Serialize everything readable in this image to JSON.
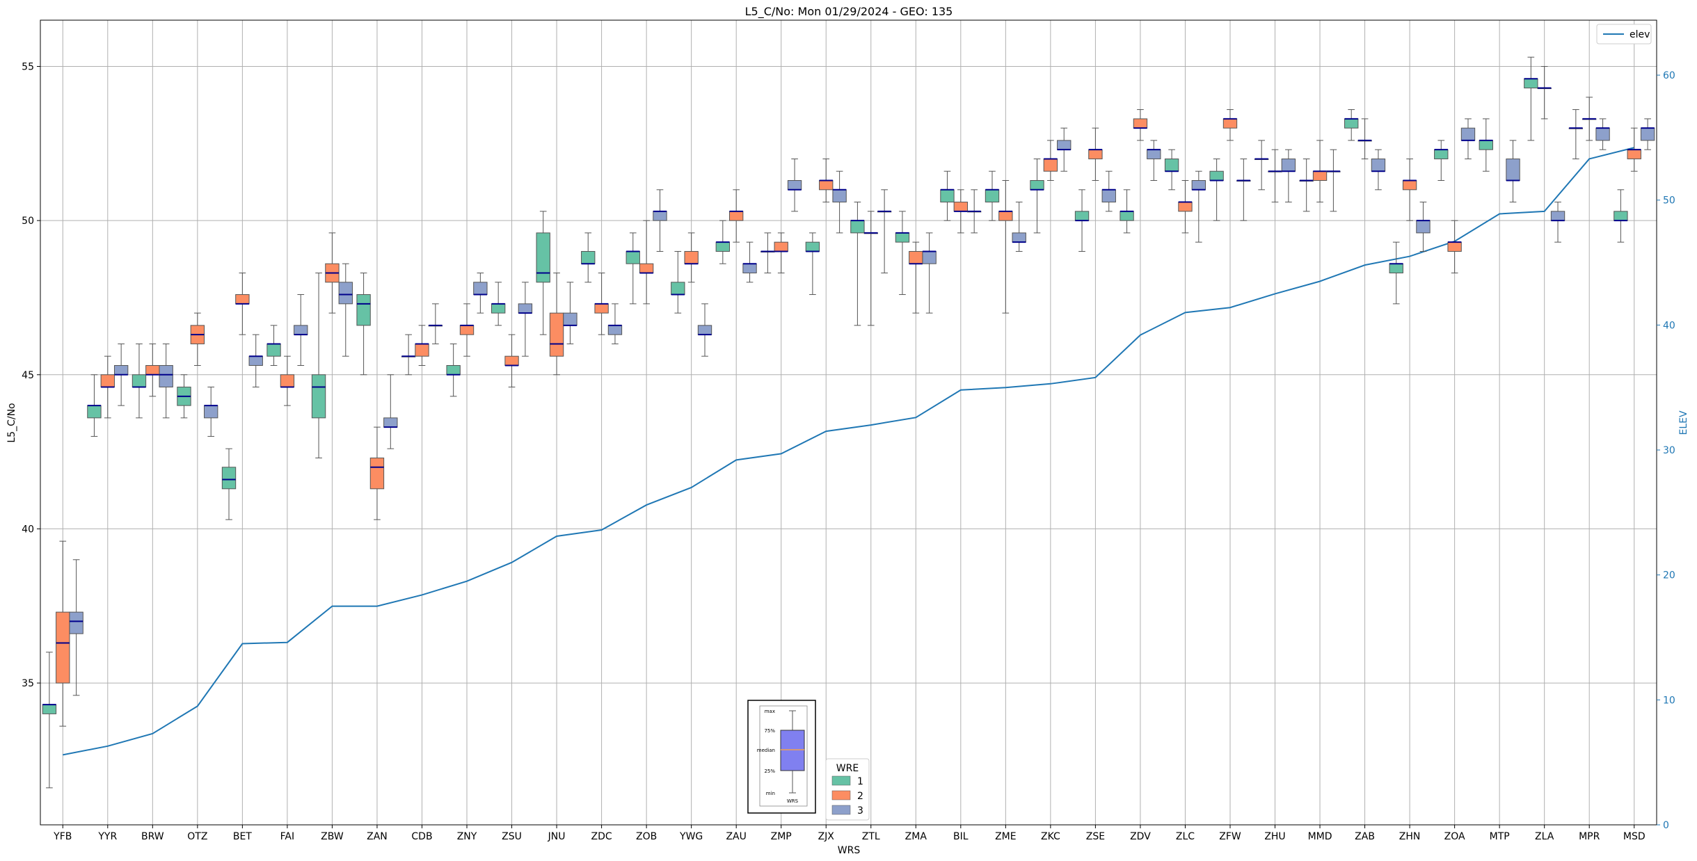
{
  "chart_data": {
    "type": "box",
    "title": "L5_C/No: Mon 01/29/2024 - GEO: 135",
    "xlabel": "WRS",
    "ylabel": "L5_C/No",
    "ylabel_right": "ELEV",
    "ylim": [
      30.4,
      56.5
    ],
    "y2lim": [
      0,
      64.4
    ],
    "yticks": [
      35,
      40,
      45,
      50,
      55
    ],
    "y2ticks": [
      0,
      10,
      20,
      30,
      40,
      50,
      60
    ],
    "grid": true,
    "categories": [
      "YFB",
      "YYR",
      "BRW",
      "OTZ",
      "BET",
      "FAI",
      "ZBW",
      "ZAN",
      "CDB",
      "ZNY",
      "ZSU",
      "JNU",
      "ZDC",
      "ZOB",
      "YWG",
      "ZAU",
      "ZMP",
      "ZJX",
      "ZTL",
      "ZMA",
      "BIL",
      "ZME",
      "ZKC",
      "ZSE",
      "ZDV",
      "ZLC",
      "ZFW",
      "ZHU",
      "MMD",
      "ZAB",
      "ZHN",
      "ZOA",
      "MTP",
      "ZLA",
      "MPR",
      "MSD"
    ],
    "legend_wre": {
      "title": "WRE",
      "entries": [
        {
          "label": "1",
          "color": "#66c2a5"
        },
        {
          "label": "2",
          "color": "#fc8d62"
        },
        {
          "label": "3",
          "color": "#8da0cb"
        }
      ],
      "placement": "bottom-center"
    },
    "legend_line": {
      "label": "elev",
      "color": "#1f77b4",
      "placement": "top-right"
    },
    "inset_labels": [
      "max",
      "75%",
      "median",
      "25%",
      "min",
      "WRS"
    ],
    "elev": [
      5.6,
      6.3,
      7.3,
      9.5,
      14.5,
      14.6,
      17.5,
      17.5,
      18.4,
      19.5,
      21.0,
      23.1,
      23.6,
      25.6,
      27.0,
      29.2,
      29.7,
      31.5,
      32.0,
      32.6,
      34.8,
      35.0,
      35.3,
      35.8,
      39.2,
      41.0,
      41.4,
      42.5,
      43.5,
      44.8,
      45.5,
      46.7,
      48.9,
      49.1,
      53.3,
      54.2
    ],
    "boxes": [
      {
        "cat": "YFB",
        "wre": 1,
        "min": 31.6,
        "q1": 34.0,
        "med": 34.3,
        "q3": 34.3,
        "max": 36.0
      },
      {
        "cat": "YFB",
        "wre": 2,
        "min": 33.6,
        "q1": 35.0,
        "med": 36.3,
        "q3": 37.3,
        "max": 39.6
      },
      {
        "cat": "YFB",
        "wre": 3,
        "min": 34.6,
        "q1": 36.6,
        "med": 37.0,
        "q3": 37.3,
        "max": 39.0
      },
      {
        "cat": "YYR",
        "wre": 1,
        "min": 43.0,
        "q1": 43.6,
        "med": 44.0,
        "q3": 44.0,
        "max": 45.0
      },
      {
        "cat": "YYR",
        "wre": 2,
        "min": 43.6,
        "q1": 44.6,
        "med": 44.6,
        "q3": 45.0,
        "max": 45.6
      },
      {
        "cat": "YYR",
        "wre": 3,
        "min": 44.0,
        "q1": 45.0,
        "med": 45.0,
        "q3": 45.3,
        "max": 46.0
      },
      {
        "cat": "BRW",
        "wre": 1,
        "min": 43.6,
        "q1": 44.6,
        "med": 44.6,
        "q3": 45.0,
        "max": 46.0
      },
      {
        "cat": "BRW",
        "wre": 2,
        "min": 44.3,
        "q1": 45.0,
        "med": 45.0,
        "q3": 45.3,
        "max": 46.0
      },
      {
        "cat": "BRW",
        "wre": 3,
        "min": 43.6,
        "q1": 44.6,
        "med": 45.0,
        "q3": 45.3,
        "max": 46.0
      },
      {
        "cat": "OTZ",
        "wre": 1,
        "min": 43.6,
        "q1": 44.0,
        "med": 44.3,
        "q3": 44.6,
        "max": 45.0
      },
      {
        "cat": "OTZ",
        "wre": 2,
        "min": 45.3,
        "q1": 46.0,
        "med": 46.3,
        "q3": 46.6,
        "max": 47.0
      },
      {
        "cat": "OTZ",
        "wre": 3,
        "min": 43.0,
        "q1": 43.6,
        "med": 44.0,
        "q3": 44.0,
        "max": 44.6
      },
      {
        "cat": "BET",
        "wre": 1,
        "min": 40.3,
        "q1": 41.3,
        "med": 41.6,
        "q3": 42.0,
        "max": 42.6
      },
      {
        "cat": "BET",
        "wre": 2,
        "min": 46.3,
        "q1": 47.3,
        "med": 47.3,
        "q3": 47.6,
        "max": 48.3
      },
      {
        "cat": "BET",
        "wre": 3,
        "min": 44.6,
        "q1": 45.3,
        "med": 45.6,
        "q3": 45.6,
        "max": 46.3
      },
      {
        "cat": "FAI",
        "wre": 1,
        "min": 45.3,
        "q1": 45.6,
        "med": 46.0,
        "q3": 46.0,
        "max": 46.6
      },
      {
        "cat": "FAI",
        "wre": 2,
        "min": 44.0,
        "q1": 44.6,
        "med": 44.6,
        "q3": 45.0,
        "max": 45.6
      },
      {
        "cat": "FAI",
        "wre": 3,
        "min": 45.3,
        "q1": 46.3,
        "med": 46.3,
        "q3": 46.6,
        "max": 47.6
      },
      {
        "cat": "ZBW",
        "wre": 1,
        "min": 42.3,
        "q1": 43.6,
        "med": 44.6,
        "q3": 45.0,
        "max": 48.3
      },
      {
        "cat": "ZBW",
        "wre": 2,
        "min": 47.0,
        "q1": 48.0,
        "med": 48.3,
        "q3": 48.6,
        "max": 49.6
      },
      {
        "cat": "ZBW",
        "wre": 3,
        "min": 45.6,
        "q1": 47.3,
        "med": 47.6,
        "q3": 48.0,
        "max": 48.6
      },
      {
        "cat": "ZAN",
        "wre": 1,
        "min": 45.0,
        "q1": 46.6,
        "med": 47.3,
        "q3": 47.6,
        "max": 48.3
      },
      {
        "cat": "ZAN",
        "wre": 2,
        "min": 40.3,
        "q1": 41.3,
        "med": 42.0,
        "q3": 42.3,
        "max": 43.3
      },
      {
        "cat": "ZAN",
        "wre": 3,
        "min": 42.6,
        "q1": 43.3,
        "med": 43.3,
        "q3": 43.6,
        "max": 45.0
      },
      {
        "cat": "CDB",
        "wre": 1,
        "min": 45.0,
        "q1": 45.6,
        "med": 45.6,
        "q3": 45.6,
        "max": 46.3
      },
      {
        "cat": "CDB",
        "wre": 2,
        "min": 45.3,
        "q1": 45.6,
        "med": 46.0,
        "q3": 46.0,
        "max": 46.6
      },
      {
        "cat": "CDB",
        "wre": 3,
        "min": 46.0,
        "q1": 46.6,
        "med": 46.6,
        "q3": 46.6,
        "max": 47.3
      },
      {
        "cat": "ZNY",
        "wre": 1,
        "min": 44.3,
        "q1": 45.0,
        "med": 45.0,
        "q3": 45.3,
        "max": 46.0
      },
      {
        "cat": "ZNY",
        "wre": 2,
        "min": 45.6,
        "q1": 46.3,
        "med": 46.6,
        "q3": 46.6,
        "max": 47.3
      },
      {
        "cat": "ZNY",
        "wre": 3,
        "min": 47.0,
        "q1": 47.6,
        "med": 47.6,
        "q3": 48.0,
        "max": 48.3
      },
      {
        "cat": "ZSU",
        "wre": 1,
        "min": 46.6,
        "q1": 47.0,
        "med": 47.3,
        "q3": 47.3,
        "max": 48.0
      },
      {
        "cat": "ZSU",
        "wre": 2,
        "min": 44.6,
        "q1": 45.3,
        "med": 45.3,
        "q3": 45.6,
        "max": 46.3
      },
      {
        "cat": "ZSU",
        "wre": 3,
        "min": 45.6,
        "q1": 47.0,
        "med": 47.0,
        "q3": 47.3,
        "max": 48.0
      },
      {
        "cat": "JNU",
        "wre": 1,
        "min": 46.3,
        "q1": 48.0,
        "med": 48.3,
        "q3": 49.6,
        "max": 50.3
      },
      {
        "cat": "JNU",
        "wre": 2,
        "min": 45.0,
        "q1": 45.6,
        "med": 46.0,
        "q3": 47.0,
        "max": 48.3
      },
      {
        "cat": "JNU",
        "wre": 3,
        "min": 46.0,
        "q1": 46.6,
        "med": 46.6,
        "q3": 47.0,
        "max": 48.0
      },
      {
        "cat": "ZDC",
        "wre": 1,
        "min": 48.0,
        "q1": 48.6,
        "med": 48.6,
        "q3": 49.0,
        "max": 49.6
      },
      {
        "cat": "ZDC",
        "wre": 2,
        "min": 46.3,
        "q1": 47.0,
        "med": 47.3,
        "q3": 47.3,
        "max": 48.3
      },
      {
        "cat": "ZDC",
        "wre": 3,
        "min": 46.0,
        "q1": 46.3,
        "med": 46.6,
        "q3": 46.6,
        "max": 47.3
      },
      {
        "cat": "ZOB",
        "wre": 1,
        "min": 47.3,
        "q1": 48.6,
        "med": 49.0,
        "q3": 49.0,
        "max": 49.6
      },
      {
        "cat": "ZOB",
        "wre": 2,
        "min": 47.3,
        "q1": 48.3,
        "med": 48.3,
        "q3": 48.6,
        "max": 50.0
      },
      {
        "cat": "ZOB",
        "wre": 3,
        "min": 49.0,
        "q1": 50.0,
        "med": 50.3,
        "q3": 50.3,
        "max": 51.0
      },
      {
        "cat": "YWG",
        "wre": 1,
        "min": 47.0,
        "q1": 47.6,
        "med": 47.6,
        "q3": 48.0,
        "max": 49.0
      },
      {
        "cat": "YWG",
        "wre": 2,
        "min": 48.0,
        "q1": 48.6,
        "med": 48.6,
        "q3": 49.0,
        "max": 49.6
      },
      {
        "cat": "YWG",
        "wre": 3,
        "min": 45.6,
        "q1": 46.3,
        "med": 46.3,
        "q3": 46.6,
        "max": 47.3
      },
      {
        "cat": "ZAU",
        "wre": 1,
        "min": 48.6,
        "q1": 49.0,
        "med": 49.3,
        "q3": 49.3,
        "max": 50.0
      },
      {
        "cat": "ZAU",
        "wre": 2,
        "min": 49.3,
        "q1": 50.0,
        "med": 50.3,
        "q3": 50.3,
        "max": 51.0
      },
      {
        "cat": "ZAU",
        "wre": 3,
        "min": 48.0,
        "q1": 48.3,
        "med": 48.6,
        "q3": 48.6,
        "max": 49.3
      },
      {
        "cat": "ZMP",
        "wre": 1,
        "min": 48.3,
        "q1": 49.0,
        "med": 49.0,
        "q3": 49.0,
        "max": 49.6
      },
      {
        "cat": "ZMP",
        "wre": 2,
        "min": 48.3,
        "q1": 49.0,
        "med": 49.0,
        "q3": 49.3,
        "max": 49.6
      },
      {
        "cat": "ZMP",
        "wre": 3,
        "min": 50.3,
        "q1": 51.0,
        "med": 51.0,
        "q3": 51.3,
        "max": 52.0
      },
      {
        "cat": "ZJX",
        "wre": 1,
        "min": 47.6,
        "q1": 49.0,
        "med": 49.0,
        "q3": 49.3,
        "max": 49.6
      },
      {
        "cat": "ZJX",
        "wre": 2,
        "min": 50.6,
        "q1": 51.0,
        "med": 51.3,
        "q3": 51.3,
        "max": 52.0
      },
      {
        "cat": "ZJX",
        "wre": 3,
        "min": 49.6,
        "q1": 50.6,
        "med": 51.0,
        "q3": 51.0,
        "max": 51.6
      },
      {
        "cat": "ZTL",
        "wre": 1,
        "min": 46.6,
        "q1": 49.6,
        "med": 50.0,
        "q3": 50.0,
        "max": 50.6
      },
      {
        "cat": "ZTL",
        "wre": 2,
        "min": 46.6,
        "q1": 49.6,
        "med": 49.6,
        "q3": 49.6,
        "max": 50.3
      },
      {
        "cat": "ZTL",
        "wre": 3,
        "min": 48.3,
        "q1": 50.3,
        "med": 50.3,
        "q3": 50.3,
        "max": 51.0
      },
      {
        "cat": "ZMA",
        "wre": 1,
        "min": 47.6,
        "q1": 49.3,
        "med": 49.6,
        "q3": 49.6,
        "max": 50.3
      },
      {
        "cat": "ZMA",
        "wre": 2,
        "min": 47.0,
        "q1": 48.6,
        "med": 48.6,
        "q3": 49.0,
        "max": 49.3
      },
      {
        "cat": "ZMA",
        "wre": 3,
        "min": 47.0,
        "q1": 48.6,
        "med": 49.0,
        "q3": 49.0,
        "max": 49.6
      },
      {
        "cat": "BIL",
        "wre": 1,
        "min": 50.0,
        "q1": 50.6,
        "med": 51.0,
        "q3": 51.0,
        "max": 51.6
      },
      {
        "cat": "BIL",
        "wre": 2,
        "min": 49.6,
        "q1": 50.3,
        "med": 50.3,
        "q3": 50.6,
        "max": 51.0
      },
      {
        "cat": "BIL",
        "wre": 3,
        "min": 49.6,
        "q1": 50.3,
        "med": 50.3,
        "q3": 50.3,
        "max": 51.0
      },
      {
        "cat": "ZME",
        "wre": 1,
        "min": 50.0,
        "q1": 50.6,
        "med": 51.0,
        "q3": 51.0,
        "max": 51.6
      },
      {
        "cat": "ZME",
        "wre": 2,
        "min": 47.0,
        "q1": 50.0,
        "med": 50.3,
        "q3": 50.3,
        "max": 51.3
      },
      {
        "cat": "ZME",
        "wre": 3,
        "min": 49.0,
        "q1": 49.3,
        "med": 49.3,
        "q3": 49.6,
        "max": 50.6
      },
      {
        "cat": "ZKC",
        "wre": 1,
        "min": 49.6,
        "q1": 51.0,
        "med": 51.0,
        "q3": 51.3,
        "max": 52.0
      },
      {
        "cat": "ZKC",
        "wre": 2,
        "min": 51.3,
        "q1": 51.6,
        "med": 52.0,
        "q3": 52.0,
        "max": 52.6
      },
      {
        "cat": "ZKC",
        "wre": 3,
        "min": 51.6,
        "q1": 52.3,
        "med": 52.3,
        "q3": 52.6,
        "max": 53.0
      },
      {
        "cat": "ZSE",
        "wre": 1,
        "min": 49.0,
        "q1": 50.0,
        "med": 50.0,
        "q3": 50.3,
        "max": 51.0
      },
      {
        "cat": "ZSE",
        "wre": 2,
        "min": 51.3,
        "q1": 52.0,
        "med": 52.3,
        "q3": 52.3,
        "max": 53.0
      },
      {
        "cat": "ZSE",
        "wre": 3,
        "min": 50.3,
        "q1": 50.6,
        "med": 51.0,
        "q3": 51.0,
        "max": 51.6
      },
      {
        "cat": "ZDV",
        "wre": 1,
        "min": 49.6,
        "q1": 50.0,
        "med": 50.3,
        "q3": 50.3,
        "max": 51.0
      },
      {
        "cat": "ZDV",
        "wre": 2,
        "min": 52.6,
        "q1": 53.0,
        "med": 53.0,
        "q3": 53.3,
        "max": 53.6
      },
      {
        "cat": "ZDV",
        "wre": 3,
        "min": 51.3,
        "q1": 52.0,
        "med": 52.3,
        "q3": 52.3,
        "max": 52.6
      },
      {
        "cat": "ZLC",
        "wre": 1,
        "min": 51.0,
        "q1": 51.6,
        "med": 51.6,
        "q3": 52.0,
        "max": 52.3
      },
      {
        "cat": "ZLC",
        "wre": 2,
        "min": 49.6,
        "q1": 50.3,
        "med": 50.6,
        "q3": 50.6,
        "max": 51.3
      },
      {
        "cat": "ZLC",
        "wre": 3,
        "min": 49.3,
        "q1": 51.0,
        "med": 51.0,
        "q3": 51.3,
        "max": 51.6
      },
      {
        "cat": "ZFW",
        "wre": 1,
        "min": 50.0,
        "q1": 51.3,
        "med": 51.3,
        "q3": 51.6,
        "max": 52.0
      },
      {
        "cat": "ZFW",
        "wre": 2,
        "min": 52.6,
        "q1": 53.0,
        "med": 53.3,
        "q3": 53.3,
        "max": 53.6
      },
      {
        "cat": "ZFW",
        "wre": 3,
        "min": 50.0,
        "q1": 51.3,
        "med": 51.3,
        "q3": 51.3,
        "max": 52.0
      },
      {
        "cat": "ZHU",
        "wre": 1,
        "min": 51.0,
        "q1": 52.0,
        "med": 52.0,
        "q3": 52.0,
        "max": 52.6
      },
      {
        "cat": "ZHU",
        "wre": 2,
        "min": 50.6,
        "q1": 51.6,
        "med": 51.6,
        "q3": 51.6,
        "max": 52.3
      },
      {
        "cat": "ZHU",
        "wre": 3,
        "min": 50.6,
        "q1": 51.6,
        "med": 51.6,
        "q3": 52.0,
        "max": 52.3
      },
      {
        "cat": "MMD",
        "wre": 1,
        "min": 50.3,
        "q1": 51.3,
        "med": 51.3,
        "q3": 51.3,
        "max": 52.0
      },
      {
        "cat": "MMD",
        "wre": 2,
        "min": 50.6,
        "q1": 51.3,
        "med": 51.6,
        "q3": 51.6,
        "max": 52.6
      },
      {
        "cat": "MMD",
        "wre": 3,
        "min": 50.3,
        "q1": 51.6,
        "med": 51.6,
        "q3": 51.6,
        "max": 52.3
      },
      {
        "cat": "ZAB",
        "wre": 1,
        "min": 52.6,
        "q1": 53.0,
        "med": 53.3,
        "q3": 53.3,
        "max": 53.6
      },
      {
        "cat": "ZAB",
        "wre": 2,
        "min": 52.0,
        "q1": 52.6,
        "med": 52.6,
        "q3": 52.6,
        "max": 53.3
      },
      {
        "cat": "ZAB",
        "wre": 3,
        "min": 51.0,
        "q1": 51.6,
        "med": 51.6,
        "q3": 52.0,
        "max": 52.3
      },
      {
        "cat": "ZHN",
        "wre": 1,
        "min": 47.3,
        "q1": 48.3,
        "med": 48.6,
        "q3": 48.6,
        "max": 49.3
      },
      {
        "cat": "ZHN",
        "wre": 2,
        "min": 50.0,
        "q1": 51.0,
        "med": 51.3,
        "q3": 51.3,
        "max": 52.0
      },
      {
        "cat": "ZHN",
        "wre": 3,
        "min": 49.0,
        "q1": 49.6,
        "med": 50.0,
        "q3": 50.0,
        "max": 50.6
      },
      {
        "cat": "ZOA",
        "wre": 1,
        "min": 51.3,
        "q1": 52.0,
        "med": 52.3,
        "q3": 52.3,
        "max": 52.6
      },
      {
        "cat": "ZOA",
        "wre": 2,
        "min": 48.3,
        "q1": 49.0,
        "med": 49.3,
        "q3": 49.3,
        "max": 50.0
      },
      {
        "cat": "ZOA",
        "wre": 3,
        "min": 52.0,
        "q1": 52.6,
        "med": 52.6,
        "q3": 53.0,
        "max": 53.3
      },
      {
        "cat": "MTP",
        "wre": 1,
        "min": 51.6,
        "q1": 52.3,
        "med": 52.6,
        "q3": 52.6,
        "max": 53.3
      },
      {
        "cat": "MTP",
        "wre": 3,
        "min": 50.6,
        "q1": 51.3,
        "med": 51.3,
        "q3": 52.0,
        "max": 52.6
      },
      {
        "cat": "ZLA",
        "wre": 1,
        "min": 52.6,
        "q1": 54.3,
        "med": 54.6,
        "q3": 54.6,
        "max": 55.3
      },
      {
        "cat": "ZLA",
        "wre": 2,
        "min": 53.3,
        "q1": 54.3,
        "med": 54.3,
        "q3": 54.3,
        "max": 55.0
      },
      {
        "cat": "ZLA",
        "wre": 3,
        "min": 49.3,
        "q1": 50.0,
        "med": 50.0,
        "q3": 50.3,
        "max": 50.6
      },
      {
        "cat": "MPR",
        "wre": 2,
        "min": 52.6,
        "q1": 53.3,
        "med": 53.3,
        "q3": 53.3,
        "max": 54.0
      },
      {
        "cat": "MPR",
        "wre": 1,
        "min": 52.0,
        "q1": 53.0,
        "med": 53.0,
        "q3": 53.0,
        "max": 53.6
      },
      {
        "cat": "MPR",
        "wre": 3,
        "min": 52.3,
        "q1": 52.6,
        "med": 53.0,
        "q3": 53.0,
        "max": 53.3
      },
      {
        "cat": "MSD",
        "wre": 1,
        "min": 49.3,
        "q1": 50.0,
        "med": 50.0,
        "q3": 50.3,
        "max": 51.0
      },
      {
        "cat": "MSD",
        "wre": 2,
        "min": 51.6,
        "q1": 52.0,
        "med": 52.3,
        "q3": 52.3,
        "max": 53.0
      },
      {
        "cat": "MSD",
        "wre": 3,
        "min": 52.3,
        "q1": 52.6,
        "med": 53.0,
        "q3": 53.0,
        "max": 53.3
      }
    ]
  }
}
